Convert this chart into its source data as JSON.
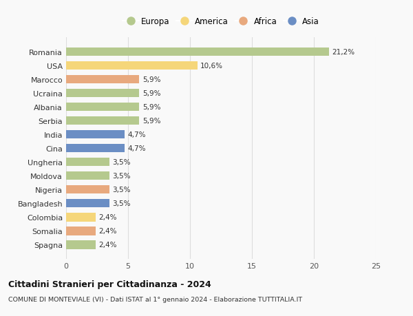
{
  "countries": [
    "Romania",
    "USA",
    "Marocco",
    "Ucraina",
    "Albania",
    "Serbia",
    "India",
    "Cina",
    "Ungheria",
    "Moldova",
    "Nigeria",
    "Bangladesh",
    "Colombia",
    "Somalia",
    "Spagna"
  ],
  "values": [
    21.2,
    10.6,
    5.9,
    5.9,
    5.9,
    5.9,
    4.7,
    4.7,
    3.5,
    3.5,
    3.5,
    3.5,
    2.4,
    2.4,
    2.4
  ],
  "labels": [
    "21,2%",
    "10,6%",
    "5,9%",
    "5,9%",
    "5,9%",
    "5,9%",
    "4,7%",
    "4,7%",
    "3,5%",
    "3,5%",
    "3,5%",
    "3,5%",
    "2,4%",
    "2,4%",
    "2,4%"
  ],
  "categories": [
    "Europa",
    "America",
    "Africa",
    "Europa",
    "Europa",
    "Europa",
    "Asia",
    "Asia",
    "Europa",
    "Europa",
    "Africa",
    "Asia",
    "America",
    "Africa",
    "Europa"
  ],
  "colors": {
    "Europa": "#b5c98e",
    "America": "#f5d67a",
    "Africa": "#e8a97e",
    "Asia": "#6b8ec4"
  },
  "legend_labels": [
    "Europa",
    "America",
    "Africa",
    "Asia"
  ],
  "xlim": [
    0,
    25
  ],
  "xticks": [
    0,
    5,
    10,
    15,
    20,
    25
  ],
  "title": "Cittadini Stranieri per Cittadinanza - 2024",
  "subtitle": "COMUNE DI MONTEVIALE (VI) - Dati ISTAT al 1° gennaio 2024 - Elaborazione TUTTITALIA.IT",
  "bg_color": "#f9f9f9",
  "grid_color": "#dddddd"
}
